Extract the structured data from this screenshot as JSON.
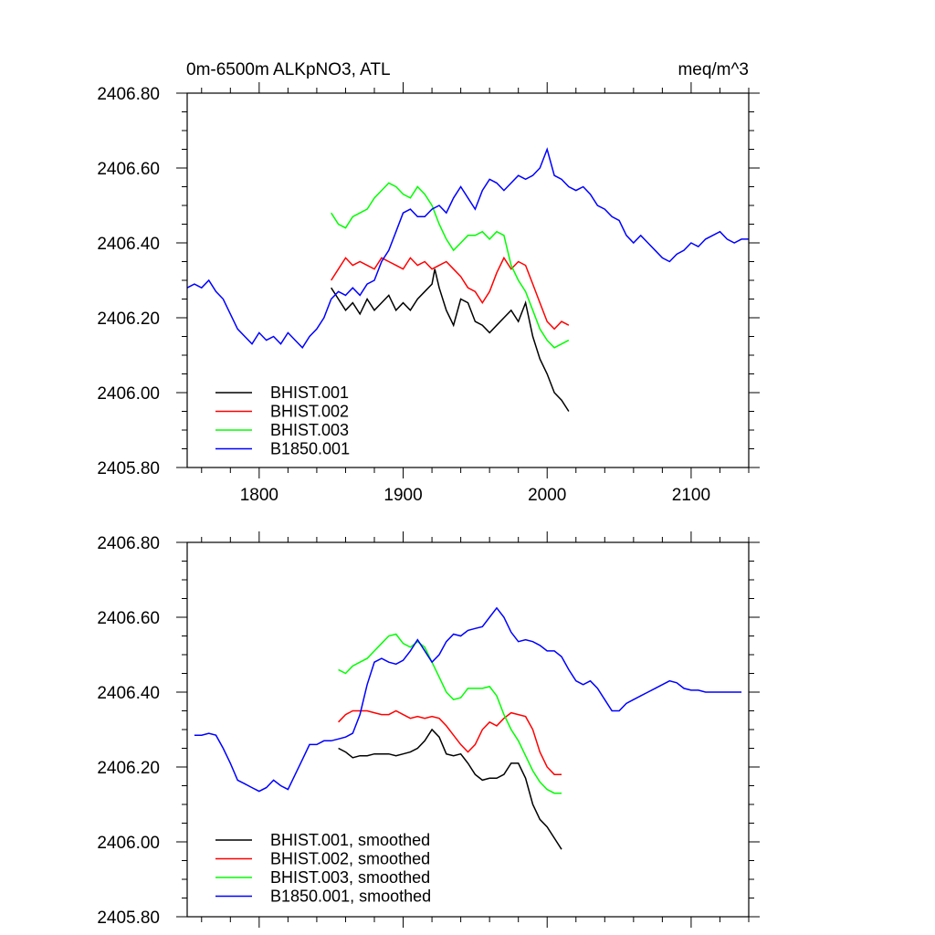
{
  "chart_data": [
    {
      "type": "line",
      "title_left": "0m-6500m ALKpNO3, ATL",
      "title_right": "meq/m^3",
      "xlim": [
        1750,
        2140
      ],
      "ylim": [
        2405.8,
        2406.8
      ],
      "x_ticks": [
        1800,
        1900,
        2000,
        2100
      ],
      "x_tick_labels": [
        "1800",
        "1900",
        "2000",
        "2100"
      ],
      "y_ticks": [
        2405.8,
        2406.0,
        2406.2,
        2406.4,
        2406.6,
        2406.8
      ],
      "y_tick_labels": [
        "2405.80",
        "2406.00",
        "2406.20",
        "2406.40",
        "2406.60",
        "2406.80"
      ],
      "legend_position": "bottom-left",
      "series": [
        {
          "name": "BHIST.001",
          "color": "#000000",
          "x": [
            1850,
            1855,
            1860,
            1865,
            1870,
            1875,
            1880,
            1885,
            1890,
            1895,
            1900,
            1905,
            1910,
            1915,
            1920,
            1922,
            1925,
            1930,
            1935,
            1940,
            1945,
            1950,
            1955,
            1960,
            1965,
            1970,
            1975,
            1980,
            1985,
            1990,
            1995,
            2000,
            2005,
            2010,
            2015
          ],
          "y": [
            2406.28,
            2406.25,
            2406.22,
            2406.24,
            2406.21,
            2406.25,
            2406.22,
            2406.24,
            2406.26,
            2406.22,
            2406.24,
            2406.22,
            2406.25,
            2406.27,
            2406.29,
            2406.33,
            2406.28,
            2406.22,
            2406.18,
            2406.25,
            2406.24,
            2406.19,
            2406.18,
            2406.16,
            2406.18,
            2406.2,
            2406.22,
            2406.19,
            2406.24,
            2406.15,
            2406.09,
            2406.05,
            2406.0,
            2405.98,
            2405.95
          ]
        },
        {
          "name": "BHIST.002",
          "color": "#ff0000",
          "x": [
            1850,
            1855,
            1860,
            1865,
            1870,
            1875,
            1880,
            1885,
            1890,
            1895,
            1900,
            1905,
            1910,
            1915,
            1920,
            1925,
            1930,
            1935,
            1940,
            1945,
            1950,
            1955,
            1960,
            1965,
            1970,
            1975,
            1980,
            1985,
            1990,
            1995,
            2000,
            2005,
            2010,
            2015
          ],
          "y": [
            2406.3,
            2406.33,
            2406.36,
            2406.34,
            2406.35,
            2406.34,
            2406.33,
            2406.36,
            2406.35,
            2406.34,
            2406.33,
            2406.36,
            2406.34,
            2406.35,
            2406.33,
            2406.34,
            2406.35,
            2406.33,
            2406.31,
            2406.28,
            2406.27,
            2406.24,
            2406.27,
            2406.32,
            2406.36,
            2406.33,
            2406.35,
            2406.34,
            2406.29,
            2406.24,
            2406.19,
            2406.17,
            2406.19,
            2406.18
          ]
        },
        {
          "name": "BHIST.003",
          "color": "#00ff00",
          "x": [
            1850,
            1855,
            1860,
            1865,
            1870,
            1875,
            1880,
            1885,
            1890,
            1895,
            1900,
            1905,
            1910,
            1915,
            1920,
            1925,
            1930,
            1935,
            1940,
            1945,
            1950,
            1955,
            1960,
            1965,
            1970,
            1975,
            1980,
            1985,
            1990,
            1995,
            2000,
            2005,
            2010,
            2015
          ],
          "y": [
            2406.48,
            2406.45,
            2406.44,
            2406.47,
            2406.48,
            2406.49,
            2406.52,
            2406.54,
            2406.56,
            2406.55,
            2406.53,
            2406.52,
            2406.55,
            2406.53,
            2406.5,
            2406.45,
            2406.41,
            2406.38,
            2406.4,
            2406.42,
            2406.42,
            2406.43,
            2406.41,
            2406.43,
            2406.42,
            2406.34,
            2406.3,
            2406.27,
            2406.22,
            2406.17,
            2406.14,
            2406.12,
            2406.13,
            2406.14
          ]
        },
        {
          "name": "B1850.001",
          "color": "#0000ff",
          "x": [
            1750,
            1755,
            1760,
            1765,
            1770,
            1775,
            1780,
            1785,
            1790,
            1795,
            1800,
            1805,
            1810,
            1815,
            1820,
            1825,
            1830,
            1835,
            1840,
            1845,
            1850,
            1855,
            1860,
            1865,
            1870,
            1875,
            1880,
            1885,
            1890,
            1895,
            1900,
            1905,
            1910,
            1915,
            1920,
            1925,
            1930,
            1935,
            1940,
            1945,
            1950,
            1955,
            1960,
            1965,
            1970,
            1975,
            1980,
            1985,
            1990,
            1995,
            2000,
            2005,
            2010,
            2015,
            2020,
            2025,
            2030,
            2035,
            2040,
            2045,
            2050,
            2055,
            2060,
            2065,
            2070,
            2075,
            2080,
            2085,
            2090,
            2095,
            2100,
            2105,
            2110,
            2115,
            2120,
            2125,
            2130,
            2135,
            2140
          ],
          "y": [
            2406.28,
            2406.29,
            2406.28,
            2406.3,
            2406.27,
            2406.25,
            2406.21,
            2406.17,
            2406.15,
            2406.13,
            2406.16,
            2406.14,
            2406.15,
            2406.13,
            2406.16,
            2406.14,
            2406.12,
            2406.15,
            2406.17,
            2406.2,
            2406.25,
            2406.27,
            2406.26,
            2406.28,
            2406.26,
            2406.29,
            2406.3,
            2406.35,
            2406.38,
            2406.43,
            2406.48,
            2406.49,
            2406.47,
            2406.47,
            2406.49,
            2406.5,
            2406.48,
            2406.52,
            2406.55,
            2406.52,
            2406.49,
            2406.54,
            2406.57,
            2406.56,
            2406.54,
            2406.56,
            2406.58,
            2406.57,
            2406.58,
            2406.6,
            2406.65,
            2406.58,
            2406.57,
            2406.55,
            2406.54,
            2406.55,
            2406.53,
            2406.5,
            2406.49,
            2406.47,
            2406.46,
            2406.42,
            2406.4,
            2406.42,
            2406.4,
            2406.38,
            2406.36,
            2406.35,
            2406.37,
            2406.38,
            2406.4,
            2406.39,
            2406.41,
            2406.42,
            2406.43,
            2406.41,
            2406.4,
            2406.41,
            2406.41
          ]
        }
      ]
    },
    {
      "type": "line",
      "xlim": [
        1750,
        2140
      ],
      "ylim": [
        2405.8,
        2406.8
      ],
      "x_ticks": [
        1800,
        1900,
        2000,
        2100
      ],
      "y_ticks": [
        2405.8,
        2406.0,
        2406.2,
        2406.4,
        2406.6,
        2406.8
      ],
      "y_tick_labels": [
        "2405.80",
        "2406.00",
        "2406.20",
        "2406.40",
        "2406.60",
        "2406.80"
      ],
      "legend_position": "bottom-left",
      "series": [
        {
          "name": "BHIST.001, smoothed",
          "color": "#000000",
          "x": [
            1855,
            1860,
            1865,
            1870,
            1875,
            1880,
            1885,
            1890,
            1895,
            1900,
            1905,
            1910,
            1915,
            1920,
            1925,
            1930,
            1935,
            1940,
            1945,
            1950,
            1955,
            1960,
            1965,
            1970,
            1975,
            1980,
            1985,
            1990,
            1995,
            2000,
            2005,
            2010
          ],
          "y": [
            2406.25,
            2406.24,
            2406.225,
            2406.23,
            2406.23,
            2406.235,
            2406.235,
            2406.235,
            2406.23,
            2406.235,
            2406.24,
            2406.25,
            2406.27,
            2406.3,
            2406.28,
            2406.235,
            2406.23,
            2406.235,
            2406.21,
            2406.18,
            2406.165,
            2406.17,
            2406.17,
            2406.18,
            2406.21,
            2406.21,
            2406.17,
            2406.1,
            2406.06,
            2406.04,
            2406.01,
            2405.98
          ]
        },
        {
          "name": "BHIST.002, smoothed",
          "color": "#ff0000",
          "x": [
            1855,
            1860,
            1865,
            1870,
            1875,
            1880,
            1885,
            1890,
            1895,
            1900,
            1905,
            1910,
            1915,
            1920,
            1925,
            1930,
            1935,
            1940,
            1945,
            1950,
            1955,
            1960,
            1965,
            1970,
            1975,
            1980,
            1985,
            1990,
            1995,
            2000,
            2005,
            2010
          ],
          "y": [
            2406.32,
            2406.34,
            2406.35,
            2406.35,
            2406.35,
            2406.345,
            2406.34,
            2406.34,
            2406.35,
            2406.34,
            2406.33,
            2406.335,
            2406.33,
            2406.335,
            2406.33,
            2406.31,
            2406.285,
            2406.26,
            2406.24,
            2406.26,
            2406.3,
            2406.32,
            2406.31,
            2406.33,
            2406.345,
            2406.34,
            2406.335,
            2406.3,
            2406.24,
            2406.2,
            2406.18,
            2406.18
          ]
        },
        {
          "name": "BHIST.003, smoothed",
          "color": "#00ff00",
          "x": [
            1855,
            1860,
            1865,
            1870,
            1875,
            1880,
            1885,
            1890,
            1895,
            1900,
            1905,
            1910,
            1915,
            1920,
            1925,
            1930,
            1935,
            1940,
            1945,
            1950,
            1955,
            1960,
            1965,
            1970,
            1975,
            1980,
            1985,
            1990,
            1995,
            2000,
            2005,
            2010
          ],
          "y": [
            2406.46,
            2406.45,
            2406.47,
            2406.48,
            2406.49,
            2406.51,
            2406.53,
            2406.55,
            2406.555,
            2406.53,
            2406.52,
            2406.535,
            2406.52,
            2406.48,
            2406.44,
            2406.4,
            2406.38,
            2406.385,
            2406.41,
            2406.41,
            2406.41,
            2406.415,
            2406.39,
            2406.34,
            2406.3,
            2406.27,
            2406.23,
            2406.19,
            2406.16,
            2406.14,
            2406.13,
            2406.13
          ]
        },
        {
          "name": "B1850.001, smoothed",
          "color": "#0000ff",
          "x": [
            1755,
            1760,
            1765,
            1770,
            1775,
            1780,
            1785,
            1790,
            1795,
            1800,
            1805,
            1810,
            1815,
            1820,
            1825,
            1830,
            1835,
            1840,
            1845,
            1850,
            1855,
            1860,
            1865,
            1870,
            1875,
            1880,
            1885,
            1890,
            1895,
            1900,
            1905,
            1910,
            1915,
            1920,
            1925,
            1930,
            1935,
            1940,
            1945,
            1950,
            1955,
            1960,
            1965,
            1970,
            1975,
            1980,
            1985,
            1990,
            1995,
            2000,
            2005,
            2010,
            2015,
            2020,
            2025,
            2030,
            2035,
            2040,
            2045,
            2050,
            2055,
            2060,
            2065,
            2070,
            2075,
            2080,
            2085,
            2090,
            2095,
            2100,
            2105,
            2110,
            2115,
            2120,
            2125,
            2130,
            2135
          ],
          "y": [
            2406.285,
            2406.285,
            2406.29,
            2406.285,
            2406.25,
            2406.21,
            2406.165,
            2406.155,
            2406.145,
            2406.135,
            2406.145,
            2406.165,
            2406.15,
            2406.14,
            2406.18,
            2406.22,
            2406.26,
            2406.26,
            2406.27,
            2406.27,
            2406.275,
            2406.28,
            2406.29,
            2406.34,
            2406.42,
            2406.48,
            2406.49,
            2406.48,
            2406.475,
            2406.485,
            2406.51,
            2406.54,
            2406.51,
            2406.48,
            2406.5,
            2406.535,
            2406.555,
            2406.55,
            2406.565,
            2406.57,
            2406.575,
            2406.6,
            2406.625,
            2406.6,
            2406.56,
            2406.535,
            2406.54,
            2406.535,
            2406.525,
            2406.51,
            2406.51,
            2406.495,
            2406.46,
            2406.43,
            2406.42,
            2406.43,
            2406.41,
            2406.38,
            2406.35,
            2406.35,
            2406.37,
            2406.38,
            2406.39,
            2406.4,
            2406.41,
            2406.42,
            2406.43,
            2406.425,
            2406.41,
            2406.405,
            2406.405,
            2406.4,
            2406.4,
            2406.4,
            2406.4,
            2406.4,
            2406.4
          ]
        }
      ]
    }
  ]
}
